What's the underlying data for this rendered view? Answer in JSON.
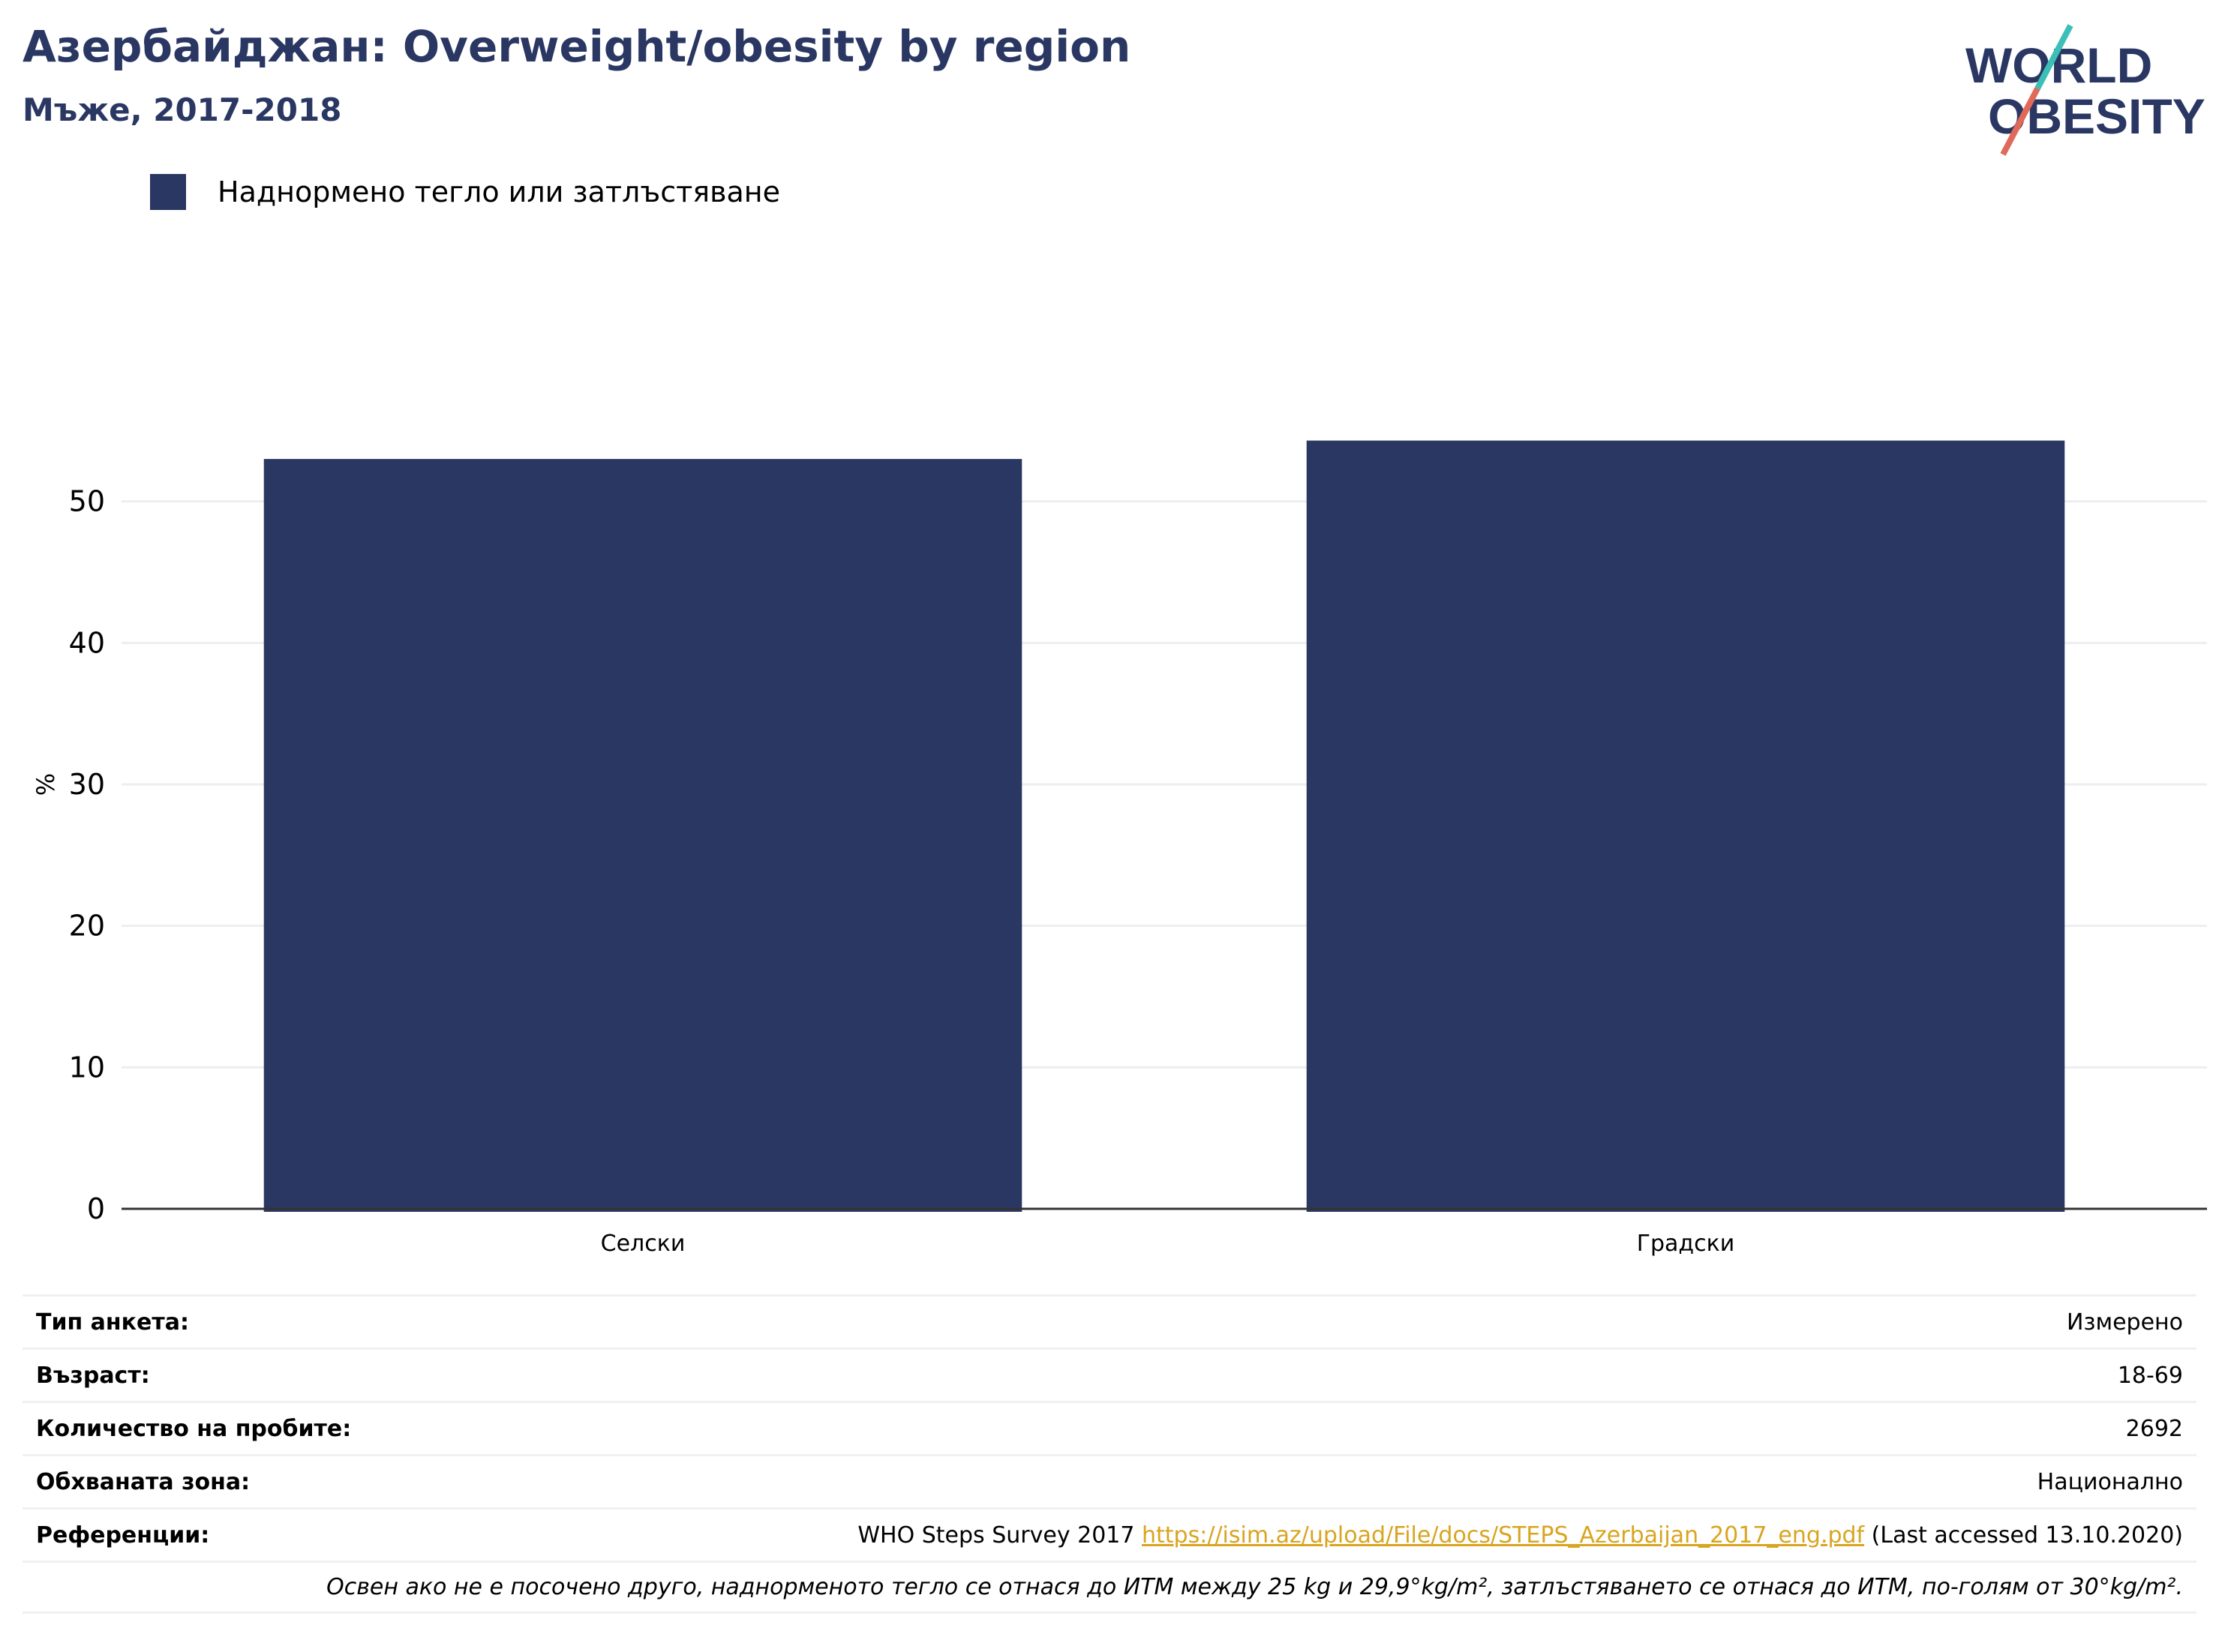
{
  "header": {
    "title": "Азербайджан: Overweight/obesity by region",
    "subtitle": "Мъже, 2017-2018"
  },
  "logo": {
    "line1": "WORLD",
    "line2": "OBESITY",
    "colors": {
      "text": "#2a3763",
      "slash_top": "#3bbfb6",
      "slash_bottom": "#e0695a"
    }
  },
  "colors": {
    "bar": "#2a3763",
    "grid": "#eceef0",
    "axis": "#333333",
    "link": "#d9a520"
  },
  "chart_data": {
    "type": "bar",
    "categories": [
      "Селски",
      "Градски"
    ],
    "series": [
      {
        "name": "Наднормено тегло или затлъстяване",
        "values": [
          53.0,
          54.3
        ]
      }
    ],
    "ylabel": "%",
    "ylim": [
      0,
      60
    ],
    "yticks": [
      "0",
      "10",
      "20",
      "30",
      "40",
      "50"
    ],
    "grid": true,
    "legend": "top-left"
  },
  "info": {
    "rows": [
      {
        "key": "Тип анкета:",
        "value": "Измерено"
      },
      {
        "key": "Възраст:",
        "value": "18-69"
      },
      {
        "key": "Количество на пробите:",
        "value": "2692"
      },
      {
        "key": "Обхваната зона:",
        "value": "Национално"
      }
    ],
    "reference": {
      "key": "Референции:",
      "prefix": "WHO Steps Survey 2017",
      "link": "https://isim.az/upload/File/docs/STEPS_Azerbaijan_2017_eng.pdf",
      "suffix": "(Last accessed 13.10.2020)"
    },
    "note": "Освен ако не е посочено друго, наднорменото тегло се отнася до ИТМ между 25 kg и 29,9°kg/m², затлъстяването се отнася до ИТМ, по-голям от 30°kg/m²."
  }
}
